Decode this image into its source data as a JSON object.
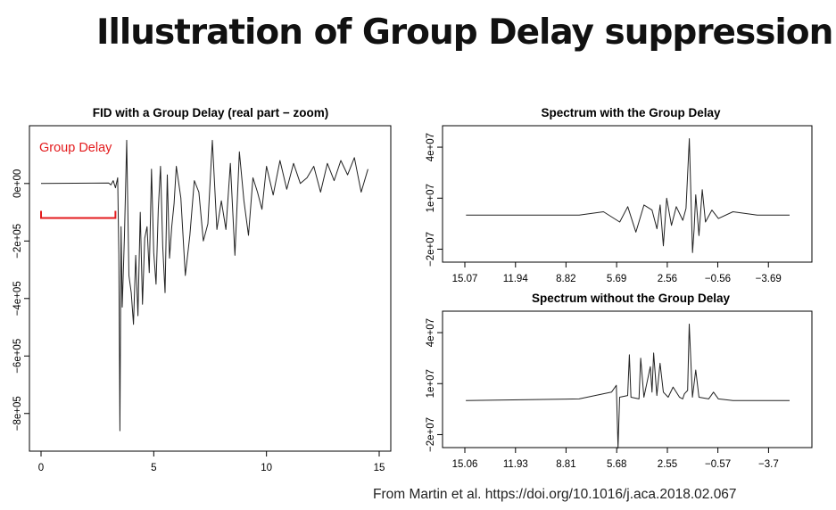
{
  "slide": {
    "title": "Illustration of Group Delay suppression",
    "citation": "From Martin et al. https://doi.org/10.1016/j.aca.2018.02.067"
  },
  "colors": {
    "axis": "#000000",
    "trace": "#222222",
    "annotation": "#e31a1c"
  },
  "chart_data": [
    {
      "id": "fid",
      "type": "line",
      "title": "FID with a Group Delay (real part − zoom)",
      "xlabel": "",
      "ylabel": "",
      "xlim": [
        0,
        15
      ],
      "ylim": [
        -900000,
        170000
      ],
      "xticks": [
        0,
        5,
        10,
        15
      ],
      "xtick_labels": [
        "0",
        "5",
        "10",
        "15"
      ],
      "yticks": [
        0,
        -200000,
        -400000,
        -600000,
        -800000
      ],
      "ytick_labels": [
        "0e+00",
        "−2e+05",
        "−4e+05",
        "−6e+05",
        "−8e+05"
      ],
      "annotation": {
        "text": "Group Delay",
        "x_start": 0,
        "x_end": 3.3,
        "y": -120000
      },
      "series": [
        {
          "x": [
            0,
            3.0,
            3.1,
            3.2,
            3.3,
            3.4,
            3.45,
            3.5,
            3.55,
            3.6,
            3.7,
            3.8,
            3.9,
            4.0,
            4.1,
            4.2,
            4.3,
            4.4,
            4.5,
            4.6,
            4.7,
            4.8,
            4.9,
            5.0,
            5.1,
            5.2,
            5.3,
            5.4,
            5.5,
            5.6,
            5.7,
            5.8,
            5.9,
            6.0,
            6.2,
            6.4,
            6.6,
            6.8,
            7.0,
            7.2,
            7.4,
            7.6,
            7.8,
            8.0,
            8.2,
            8.4,
            8.6,
            8.8,
            9.0,
            9.2,
            9.4,
            9.6,
            9.8,
            10.0,
            10.3,
            10.6,
            10.9,
            11.2,
            11.5,
            11.8,
            12.1,
            12.4,
            12.7,
            13.0,
            13.3,
            13.6,
            13.9,
            14.2,
            14.5
          ],
          "values": [
            0,
            2000,
            -5000,
            10000,
            -15000,
            20000,
            -250000,
            -860000,
            -150000,
            -430000,
            -180000,
            150000,
            -320000,
            -380000,
            -490000,
            -250000,
            -460000,
            -100000,
            -420000,
            -190000,
            -150000,
            -310000,
            50000,
            -240000,
            -350000,
            -90000,
            60000,
            -220000,
            -380000,
            30000,
            -260000,
            -150000,
            -70000,
            60000,
            -50000,
            -320000,
            -180000,
            10000,
            -30000,
            -200000,
            -140000,
            150000,
            -160000,
            -60000,
            -160000,
            70000,
            -250000,
            110000,
            -60000,
            -180000,
            20000,
            -30000,
            -90000,
            60000,
            -40000,
            80000,
            -20000,
            70000,
            0,
            20000,
            60000,
            -30000,
            70000,
            10000,
            80000,
            30000,
            90000,
            -30000,
            50000
          ]
        }
      ]
    },
    {
      "id": "spectrum-with",
      "type": "line",
      "title": "Spectrum with the Group Delay",
      "xlabel": "",
      "ylabel": "",
      "xlim": [
        15.07,
        -5.0
      ],
      "ylim": [
        -25000000,
        50000000
      ],
      "xticks": [
        15.07,
        11.94,
        8.82,
        5.69,
        2.56,
        -0.56,
        -3.69
      ],
      "xtick_labels": [
        "15.07",
        "11.94",
        "8.82",
        "5.69",
        "2.56",
        "−0.56",
        "−3.69"
      ],
      "yticks": [
        -20000000,
        10000000,
        40000000
      ],
      "ytick_labels": [
        "−2e+07",
        "1e+07",
        "4e+07"
      ],
      "series": [
        {
          "x": [
            15.0,
            8.0,
            6.5,
            5.5,
            5.0,
            4.5,
            4.0,
            3.5,
            3.2,
            3.0,
            2.8,
            2.6,
            2.3,
            2.0,
            1.6,
            1.4,
            1.2,
            1.0,
            0.9,
            0.8,
            0.6,
            0.4,
            0.2,
            -0.2,
            -0.6,
            -1.5,
            -3.0,
            -5.0
          ],
          "values": [
            0,
            0,
            2000000,
            -4000000,
            5000000,
            -10000000,
            6000000,
            3000000,
            -8000000,
            6000000,
            -18000000,
            10000000,
            -6000000,
            5000000,
            -3000000,
            4000000,
            45000000,
            -22000000,
            -8000000,
            12000000,
            -12000000,
            15000000,
            -4000000,
            3000000,
            -2000000,
            2000000,
            0,
            0
          ]
        }
      ]
    },
    {
      "id": "spectrum-without",
      "type": "line",
      "title": "Spectrum without the Group Delay",
      "xlabel": "",
      "ylabel": "",
      "xlim": [
        15.06,
        -5.0
      ],
      "ylim": [
        -25000000,
        50000000
      ],
      "xticks": [
        15.06,
        11.93,
        8.81,
        5.68,
        2.55,
        -0.57,
        -3.7
      ],
      "xtick_labels": [
        "15.06",
        "11.93",
        "8.81",
        "5.68",
        "2.55",
        "−0.57",
        "−3.7"
      ],
      "yticks": [
        -20000000,
        10000000,
        40000000
      ],
      "ytick_labels": [
        "−2e+07",
        "1e+07",
        "4e+07"
      ],
      "series": [
        {
          "x": [
            15.0,
            8.0,
            6.0,
            5.7,
            5.6,
            5.5,
            5.0,
            4.9,
            4.8,
            4.3,
            4.2,
            4.0,
            3.6,
            3.5,
            3.4,
            3.2,
            3.0,
            2.8,
            2.5,
            2.2,
            1.8,
            1.6,
            1.5,
            1.3,
            1.2,
            1.0,
            0.8,
            0.6,
            0.0,
            -0.3,
            -0.6,
            -1.5,
            -5.0
          ],
          "values": [
            0,
            1000000,
            5000000,
            9000000,
            -28000000,
            2000000,
            3000000,
            27000000,
            2000000,
            1000000,
            25000000,
            2000000,
            20000000,
            5000000,
            28000000,
            3000000,
            22000000,
            5000000,
            2000000,
            8000000,
            2000000,
            1000000,
            4000000,
            6000000,
            45000000,
            2000000,
            18000000,
            2000000,
            1000000,
            5000000,
            1000000,
            0,
            0
          ]
        }
      ]
    }
  ]
}
